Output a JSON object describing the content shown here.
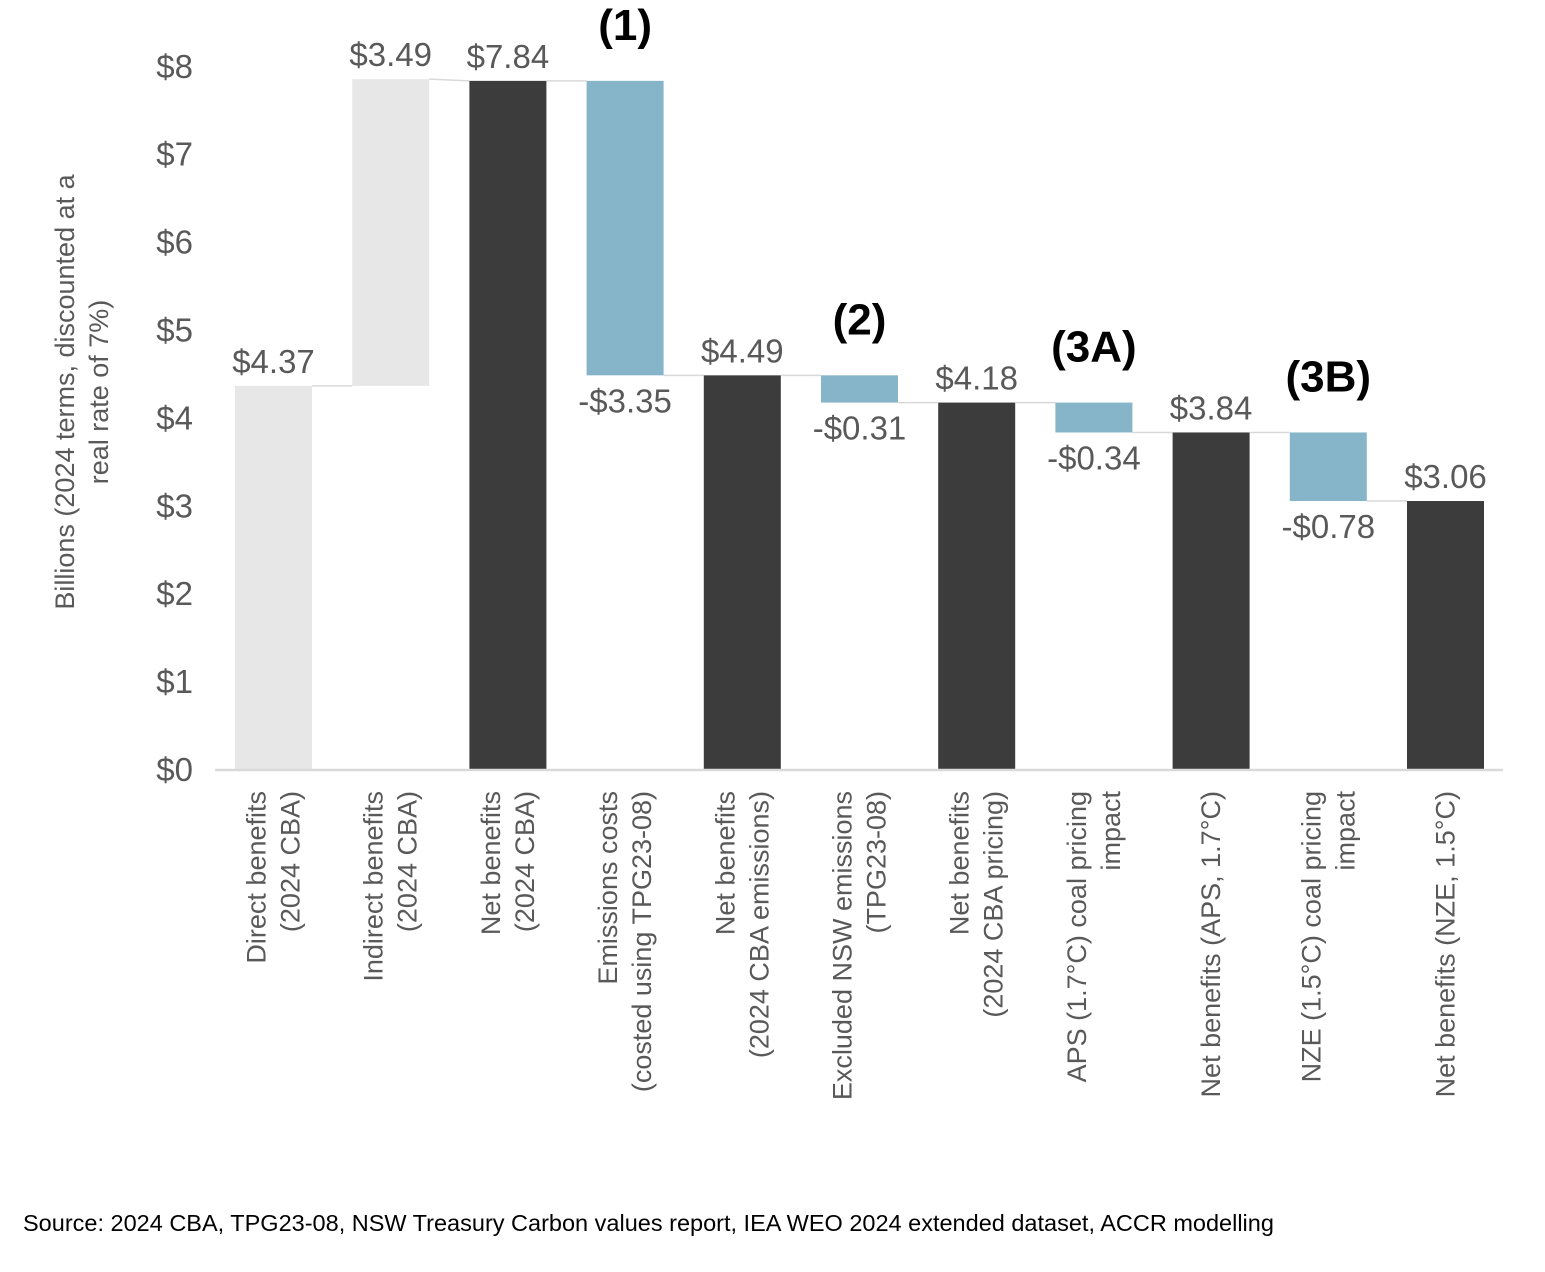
{
  "chart_data": {
    "type": "waterfall",
    "ylabel": [
      "Billions (2024 terms, discounted at a",
      "real rate of 7%)"
    ],
    "ylim": [
      0,
      8
    ],
    "yticks": [
      0,
      1,
      2,
      3,
      4,
      5,
      6,
      7,
      8
    ],
    "ytick_labels": [
      "$0",
      "$1",
      "$2",
      "$3",
      "$4",
      "$5",
      "$6",
      "$7",
      "$8"
    ],
    "colors": {
      "benefit": "#E7E7E7",
      "total": "#3C3C3C",
      "decrease": "#86B5C9",
      "connector": "#D9D9D9",
      "axis": "#D9D9D9"
    },
    "bars": [
      {
        "category": [
          "Direct benefits",
          "(2024 CBA)"
        ],
        "kind": "benefit",
        "base": 0,
        "value": 4.37,
        "label": "$4.37",
        "label_pos": "above",
        "annotation": ""
      },
      {
        "category": [
          "Indirect benefits",
          "(2024 CBA)"
        ],
        "kind": "benefit",
        "base": 4.37,
        "value": 3.49,
        "label": "$3.49",
        "label_pos": "above",
        "annotation": ""
      },
      {
        "category": [
          "Net benefits",
          "(2024 CBA)"
        ],
        "kind": "total",
        "base": 0,
        "value": 7.84,
        "label": "$7.84",
        "label_pos": "above",
        "annotation": ""
      },
      {
        "category": [
          "Emissions costs",
          "(costed using TPG23-08)"
        ],
        "kind": "decrease",
        "base": 7.84,
        "value": -3.35,
        "label": "-$3.35",
        "label_pos": "below",
        "annotation": "(1)"
      },
      {
        "category": [
          "Net benefits",
          "(2024 CBA emissions)"
        ],
        "kind": "total",
        "base": 0,
        "value": 4.49,
        "label": "$4.49",
        "label_pos": "above",
        "annotation": ""
      },
      {
        "category": [
          "Excluded NSW emissions",
          "(TPG23-08)"
        ],
        "kind": "decrease",
        "base": 4.49,
        "value": -0.31,
        "label": "-$0.31",
        "label_pos": "below",
        "annotation": "(2)"
      },
      {
        "category": [
          "Net benefits",
          "(2024 CBA pricing)"
        ],
        "kind": "total",
        "base": 0,
        "value": 4.18,
        "label": "$4.18",
        "label_pos": "above",
        "annotation": ""
      },
      {
        "category": [
          "APS (1.7°C) coal pricing",
          "impact"
        ],
        "kind": "decrease",
        "base": 4.18,
        "value": -0.34,
        "label": "-$0.34",
        "label_pos": "below",
        "annotation": "(3A)"
      },
      {
        "category": [
          "Net benefits (APS, 1.7°C)"
        ],
        "kind": "total",
        "base": 0,
        "value": 3.84,
        "label": "$3.84",
        "label_pos": "above",
        "annotation": ""
      },
      {
        "category": [
          "NZE (1.5°C) coal pricing",
          "impact"
        ],
        "kind": "decrease",
        "base": 3.84,
        "value": -0.78,
        "label": "-$0.78",
        "label_pos": "below",
        "annotation": "(3B)"
      },
      {
        "category": [
          "Net benefits (NZE, 1.5°C)"
        ],
        "kind": "total",
        "base": 0,
        "value": 3.06,
        "label": "$3.06",
        "label_pos": "above",
        "annotation": ""
      }
    ]
  },
  "source": "Source: 2024 CBA, TPG23-08, NSW Treasury Carbon values report, IEA WEO 2024 extended dataset, ACCR modelling"
}
